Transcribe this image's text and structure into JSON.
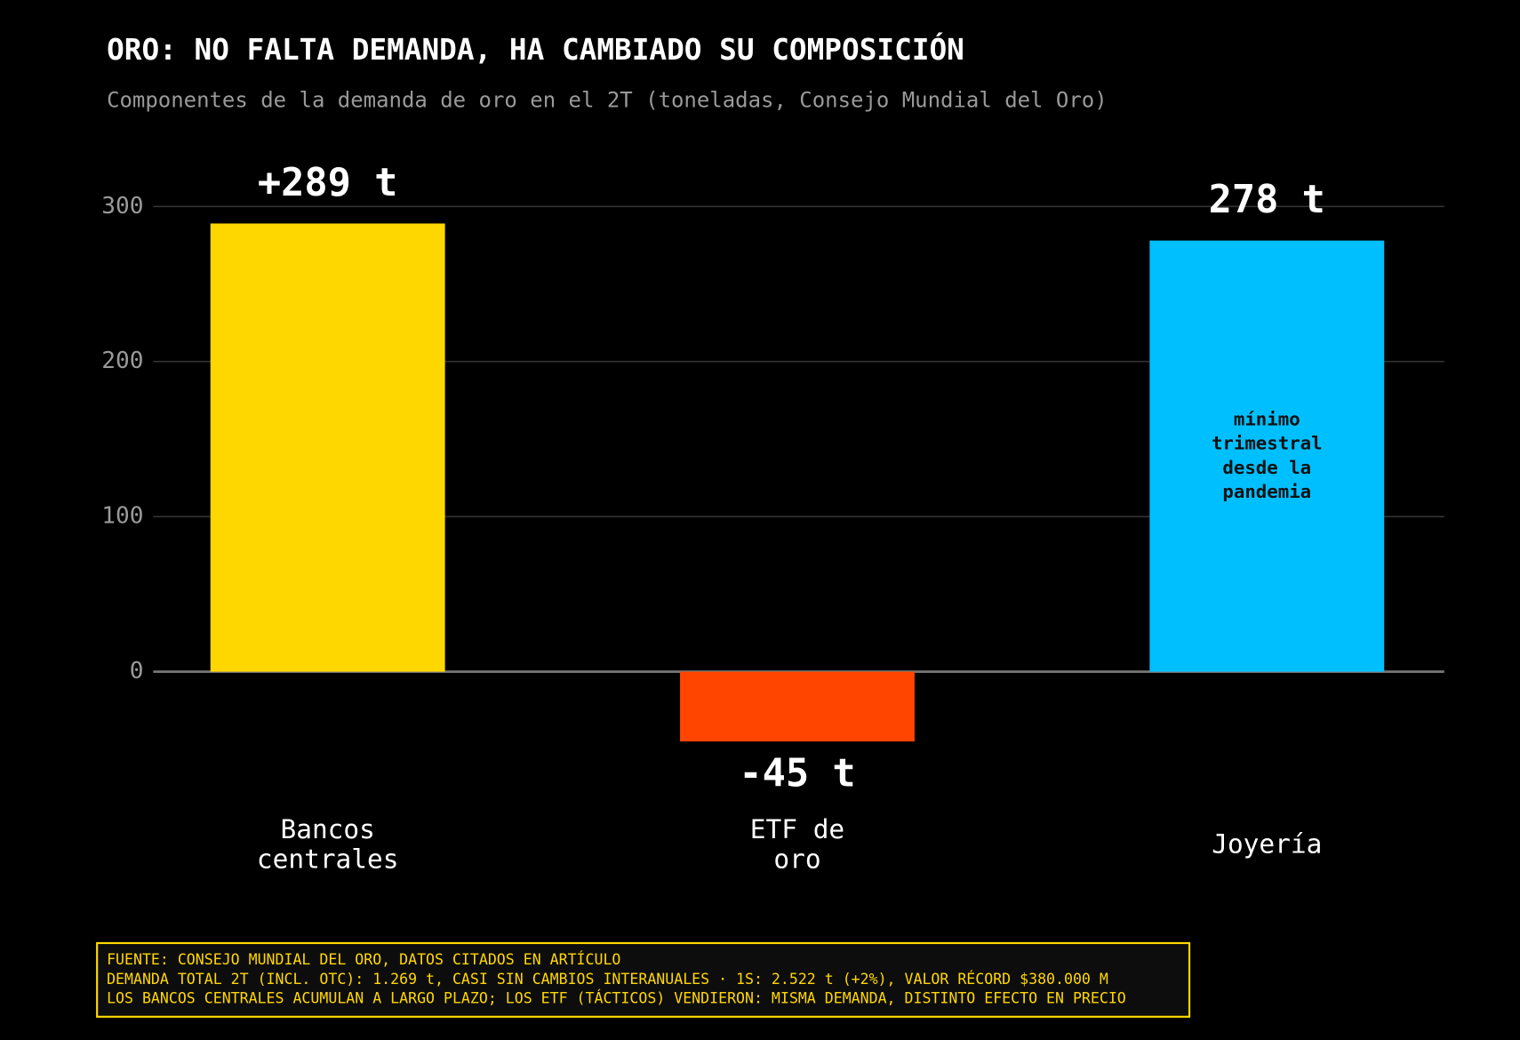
{
  "chart_data": {
    "type": "bar",
    "title": "ORO: NO FALTA DEMANDA, HA CAMBIADO SU COMPOSICIÓN",
    "subtitle": "Componentes de la demanda de oro en el 2T (toneladas, Consejo Mundial del Oro)",
    "categories": [
      "Bancos\ncentrales",
      "ETF de\noro",
      "Joyería"
    ],
    "values": [
      289,
      -45,
      278
    ],
    "value_labels": [
      "+289 t",
      "-45 t",
      "278 t"
    ],
    "colors": [
      "#FFD700",
      "#FF4500",
      "#00BFFF"
    ],
    "ylim": [
      -85,
      310
    ],
    "yticks": [
      0,
      100,
      200,
      300
    ],
    "grid": true,
    "annotation": {
      "category": "Joyería",
      "text": "mínimo\ntrimestral\ndesde la\npandemia"
    },
    "footer": [
      "FUENTE: CONSEJO MUNDIAL DEL ORO, DATOS CITADOS EN ARTÍCULO",
      "DEMANDA TOTAL 2T (INCL. OTC): 1.269 t, CASI SIN CAMBIOS INTERANUALES · 1S: 2.522 t (+2%), VALOR RÉCORD $380.000 M",
      "LOS BANCOS CENTRALES ACUMULAN A LARGO PLAZO; LOS ETF (TÁCTICOS) VENDIERON: MISMA DEMANDA, DISTINTO EFECTO EN PRECIO"
    ]
  }
}
